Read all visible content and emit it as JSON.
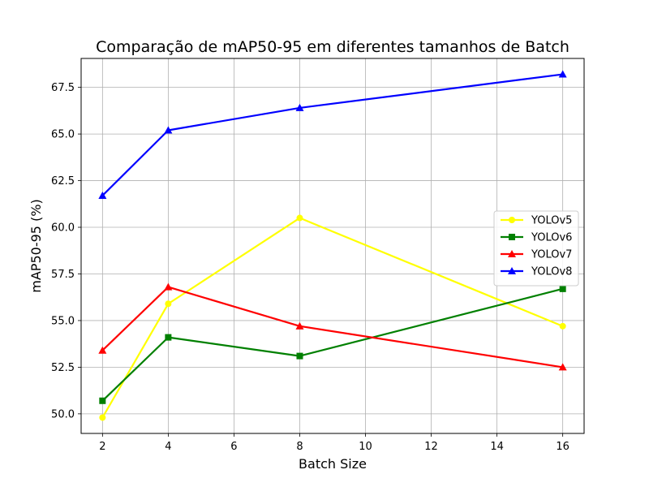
{
  "chart_data": {
    "type": "line",
    "title": "Comparação de mAP50-95 em diferentes tamanhos de Batch",
    "xlabel": "Batch Size",
    "ylabel": "mAP50-95 (%)",
    "x": [
      2,
      4,
      8,
      16
    ],
    "xlim": [
      1.35,
      16.65
    ],
    "ylim": [
      48.95,
      69.05
    ],
    "xticks": [
      2,
      4,
      6,
      8,
      10,
      12,
      14,
      16
    ],
    "yticks": [
      50.0,
      52.5,
      55.0,
      57.5,
      60.0,
      62.5,
      65.0,
      67.5
    ],
    "xtick_labels": [
      "2",
      "4",
      "6",
      "8",
      "10",
      "12",
      "14",
      "16"
    ],
    "ytick_labels": [
      "50.0",
      "52.5",
      "55.0",
      "57.5",
      "60.0",
      "62.5",
      "65.0",
      "67.5"
    ],
    "grid": true,
    "legend_position": "center-right",
    "series": [
      {
        "name": "YOLOv5",
        "values": [
          49.8,
          55.9,
          60.5,
          54.7
        ],
        "color": "#ffff00",
        "marker": "circle"
      },
      {
        "name": "YOLOv6",
        "values": [
          50.7,
          54.1,
          53.1,
          56.7
        ],
        "color": "#008000",
        "marker": "square"
      },
      {
        "name": "YOLOv7",
        "values": [
          53.4,
          56.8,
          54.7,
          52.5
        ],
        "color": "#ff0000",
        "marker": "triangle"
      },
      {
        "name": "YOLOv8",
        "values": [
          61.7,
          65.2,
          66.4,
          68.2
        ],
        "color": "#0000ff",
        "marker": "triangle"
      }
    ]
  }
}
